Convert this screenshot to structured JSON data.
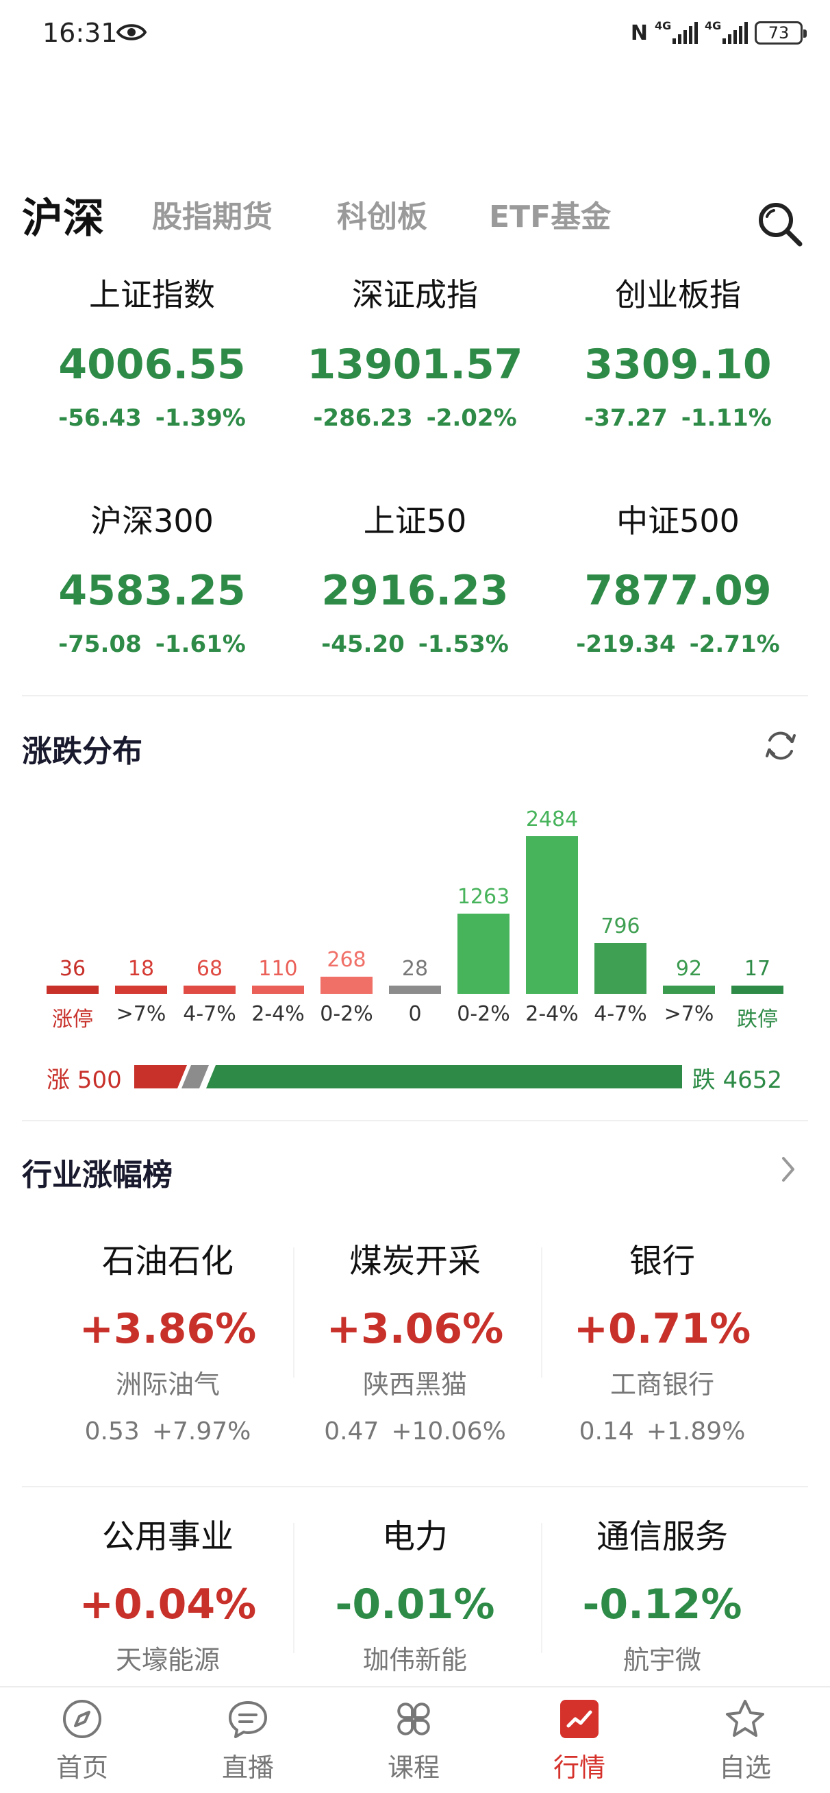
{
  "status": {
    "time": "16:31",
    "network": "4G",
    "battery": "73"
  },
  "tabs": [
    {
      "label": "沪深",
      "active": true
    },
    {
      "label": "股指期货",
      "active": false
    },
    {
      "label": "科创板",
      "active": false
    },
    {
      "label": "ETF基金",
      "active": false
    }
  ],
  "indices": [
    {
      "name": "上证指数",
      "price": "4006.55",
      "change": "-56.43",
      "percent": "-1.39%"
    },
    {
      "name": "深证成指",
      "price": "13901.57",
      "change": "-286.23",
      "percent": "-2.02%"
    },
    {
      "name": "创业板指",
      "price": "3309.10",
      "change": "-37.27",
      "percent": "-1.11%"
    },
    {
      "name": "沪深300",
      "price": "4583.25",
      "change": "-75.08",
      "percent": "-1.61%"
    },
    {
      "name": "上证50",
      "price": "2916.23",
      "change": "-45.20",
      "percent": "-1.53%"
    },
    {
      "name": "中证500",
      "price": "7877.09",
      "change": "-219.34",
      "percent": "-2.71%"
    }
  ],
  "distribution": {
    "title": "涨跌分布",
    "buckets": [
      {
        "label": "涨停",
        "count": 36,
        "color": "#c8302a",
        "label_color": "#c8302a"
      },
      {
        "label": ">7%",
        "count": 18,
        "color": "#d53a33",
        "label_color": "#333333"
      },
      {
        "label": "4-7%",
        "count": 68,
        "color": "#e04c44",
        "label_color": "#333333"
      },
      {
        "label": "2-4%",
        "count": 110,
        "color": "#ea5f57",
        "label_color": "#333333"
      },
      {
        "label": "0-2%",
        "count": 268,
        "color": "#f07068",
        "label_color": "#333333"
      },
      {
        "label": "0",
        "count": 28,
        "color": "#8c8c8c",
        "label_color": "#333333"
      },
      {
        "label": "0-2%",
        "count": 1263,
        "color": "#47b35b",
        "label_color": "#333333"
      },
      {
        "label": "2-4%",
        "count": 2484,
        "color": "#47b35b",
        "label_color": "#333333"
      },
      {
        "label": "4-7%",
        "count": 796,
        "color": "#3f9f52",
        "label_color": "#333333"
      },
      {
        "label": ">7%",
        "count": 92,
        "color": "#3a9a4e",
        "label_color": "#333333"
      },
      {
        "label": "跌停",
        "count": 17,
        "color": "#2e8b47",
        "label_color": "#2e8b47"
      }
    ],
    "up_label": "涨 500",
    "down_label": "跌 4652",
    "up_total": 500,
    "flat_total": 28,
    "down_total": 4652
  },
  "sectors": {
    "title": "行业涨幅榜",
    "items": [
      {
        "name": "石油石化",
        "change": "+3.86%",
        "dir": "up",
        "leader": "洲际油气",
        "leader_price": "0.53",
        "leader_pct": "+7.97%"
      },
      {
        "name": "煤炭开采",
        "change": "+3.06%",
        "dir": "up",
        "leader": "陕西黑猫",
        "leader_price": "0.47",
        "leader_pct": "+10.06%"
      },
      {
        "name": "银行",
        "change": "+0.71%",
        "dir": "up",
        "leader": "工商银行",
        "leader_price": "0.14",
        "leader_pct": "+1.89%"
      },
      {
        "name": "公用事业",
        "change": "+0.04%",
        "dir": "up",
        "leader": "天壕能源",
        "leader_price": "",
        "leader_pct": ""
      },
      {
        "name": "电力",
        "change": "-0.01%",
        "dir": "down",
        "leader": "珈伟新能",
        "leader_price": "",
        "leader_pct": ""
      },
      {
        "name": "通信服务",
        "change": "-0.12%",
        "dir": "down",
        "leader": "航宇微",
        "leader_price": "",
        "leader_pct": ""
      }
    ]
  },
  "nav": [
    {
      "label": "首页",
      "icon": "compass-icon",
      "active": false
    },
    {
      "label": "直播",
      "icon": "chat-bubble-icon",
      "active": false
    },
    {
      "label": "课程",
      "icon": "clover-icon",
      "active": false
    },
    {
      "label": "行情",
      "icon": "market-chart-icon",
      "active": true
    },
    {
      "label": "自选",
      "icon": "star-icon",
      "active": false
    }
  ],
  "colors": {
    "up": "#c8302a",
    "down": "#2e8b47",
    "accent": "#d6322c"
  }
}
